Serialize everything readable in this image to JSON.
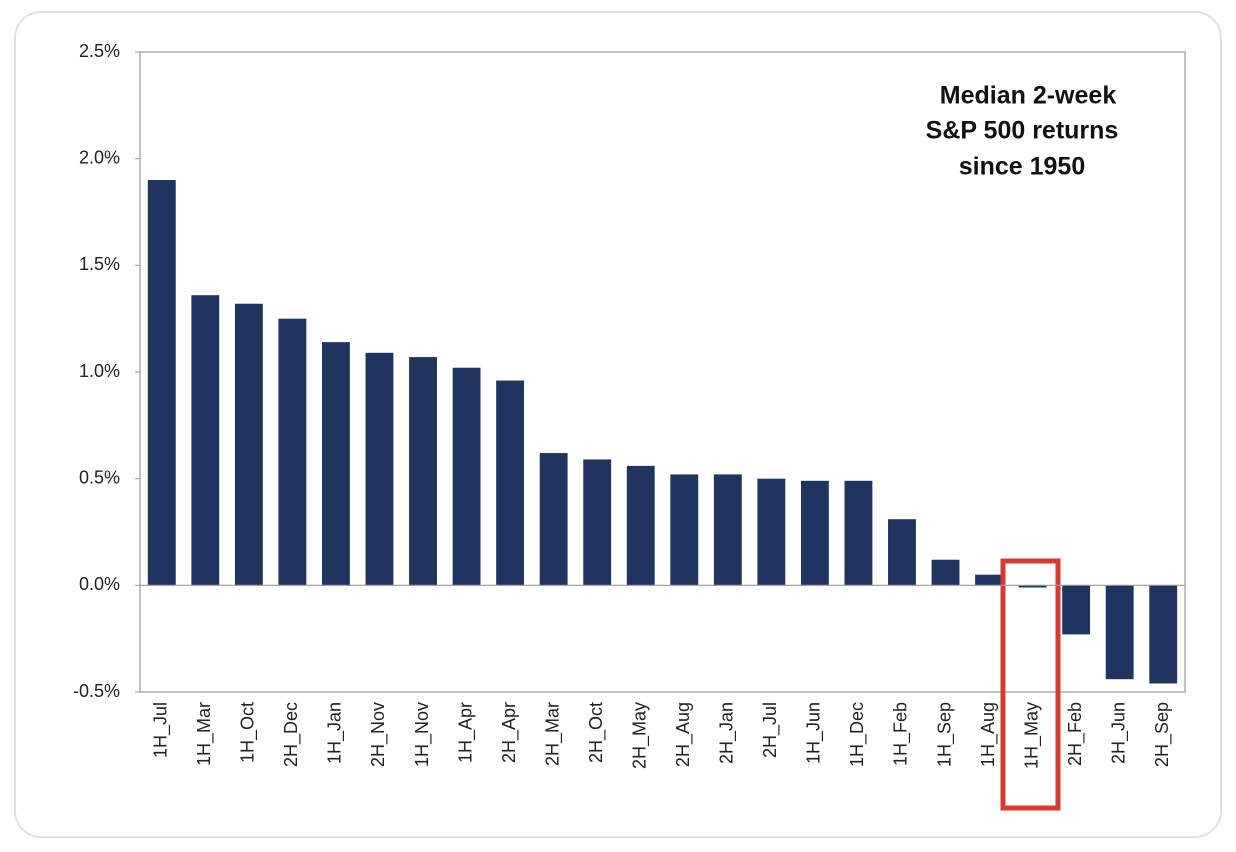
{
  "chart_data": {
    "type": "bar",
    "title": [
      "Median 2-week",
      "S&P 500 returns",
      "since 1950"
    ],
    "categories": [
      "1H_Jul",
      "1H_Mar",
      "1H_Oct",
      "2H_Dec",
      "1H_Jan",
      "2H_Nov",
      "1H_Nov",
      "1H_Apr",
      "2H_Apr",
      "2H_Mar",
      "2H_Oct",
      "2H_May",
      "2H_Aug",
      "2H_Jan",
      "2H_Jul",
      "1H_Jun",
      "1H_Dec",
      "1H_Feb",
      "1H_Sep",
      "1H_Aug",
      "1H_May",
      "2H_Feb",
      "2H_Jun",
      "2H_Sep"
    ],
    "values": [
      1.9,
      1.36,
      1.32,
      1.25,
      1.14,
      1.09,
      1.07,
      1.02,
      0.96,
      0.62,
      0.59,
      0.56,
      0.52,
      0.52,
      0.5,
      0.49,
      0.49,
      0.31,
      0.12,
      0.05,
      -0.01,
      -0.23,
      -0.44,
      -0.46
    ],
    "color": "#1f3560",
    "ylim": [
      -0.5,
      2.5
    ],
    "yticks": [
      {
        "value": -0.5,
        "label": "-0.5%"
      },
      {
        "value": 0,
        "label": "0.0%"
      },
      {
        "value": 0.5,
        "label": "0.5%"
      },
      {
        "value": 1,
        "label": "1.0%"
      },
      {
        "value": 1.5,
        "label": "1.5%"
      },
      {
        "value": 2,
        "label": "2.0%"
      },
      {
        "value": 2.5,
        "label": "2.5%"
      }
    ],
    "grid": false
  }
}
